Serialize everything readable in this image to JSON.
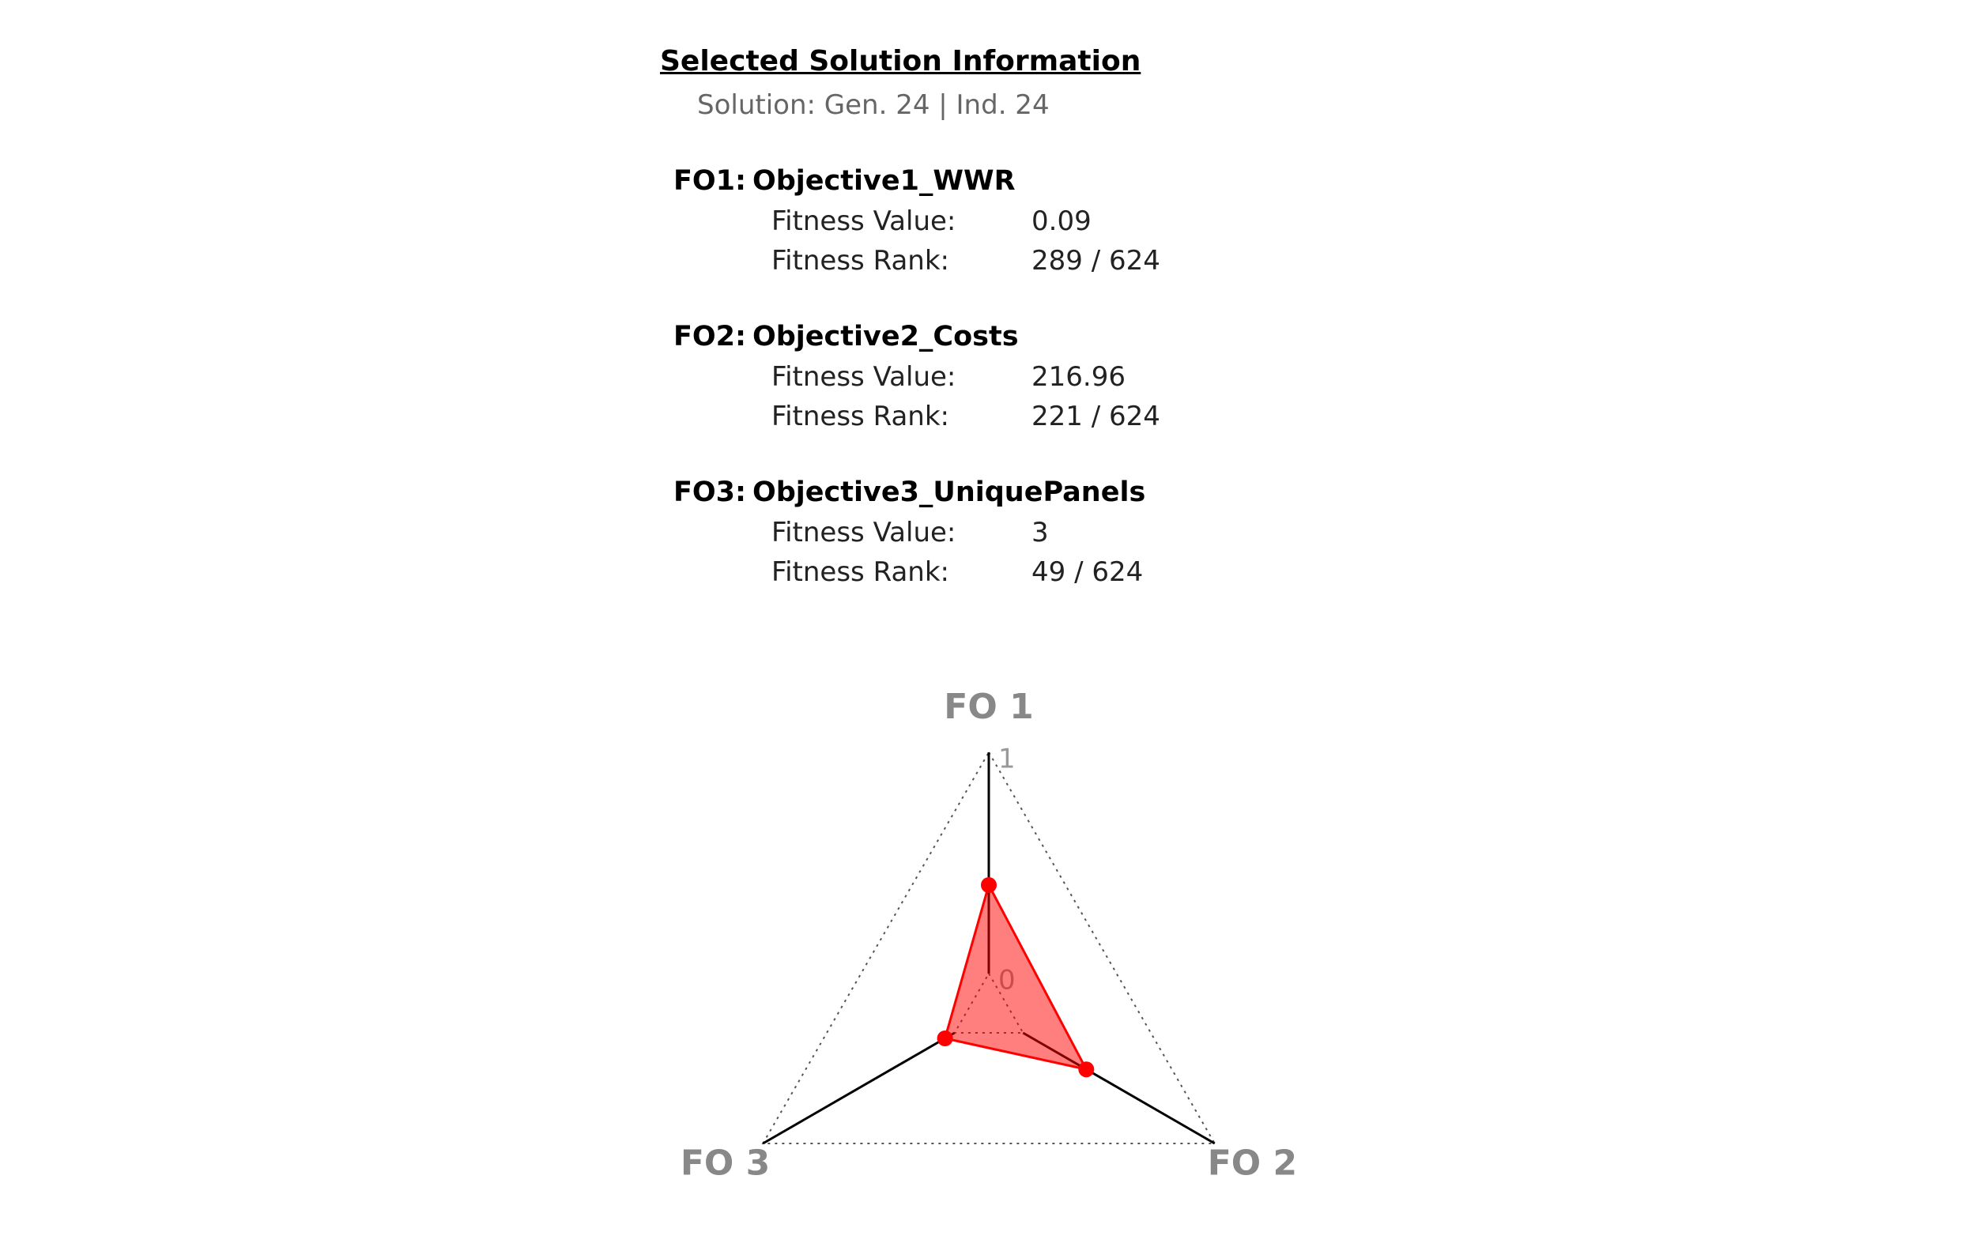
{
  "header": {
    "title": "Selected Solution Information",
    "subtitle": "Solution: Gen. 24 | Ind. 24"
  },
  "objectives": [
    {
      "code": "FO1:",
      "name": "Objective1_WWR",
      "value_label": "Fitness Value:",
      "value": 0.09,
      "rank_label": "Fitness Rank:",
      "rank": "289 / 624"
    },
    {
      "code": "FO2:",
      "name": "Objective2_Costs",
      "value_label": "Fitness Value:",
      "value": 216.96,
      "rank_label": "Fitness Rank:",
      "rank": "221 / 624"
    },
    {
      "code": "FO3:",
      "name": "Objective3_UniquePanels",
      "value_label": "Fitness Value:",
      "value": 3,
      "rank_label": "Fitness Rank:",
      "rank": "49 / 624"
    }
  ],
  "chart_data": {
    "type": "radar",
    "categories": [
      "FO 1",
      "FO 2",
      "FO 3"
    ],
    "values": [
      0.4,
      0.33,
      0.05
    ],
    "color": "#ff0000",
    "rlim": [
      0,
      1
    ],
    "rticks": [
      0,
      1
    ],
    "grid": true
  }
}
